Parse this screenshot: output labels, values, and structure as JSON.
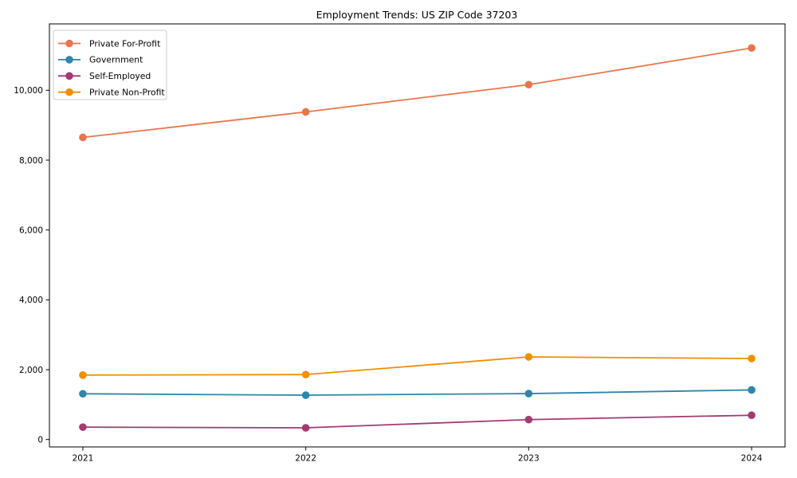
{
  "chart_data": {
    "type": "line",
    "title": "Employment Trends: US ZIP Code 37203",
    "x": [
      "2021",
      "2022",
      "2023",
      "2024"
    ],
    "series": [
      {
        "name": "Private For-Profit",
        "color": "#E8764B",
        "values": [
          8650,
          9380,
          10160,
          11210
        ]
      },
      {
        "name": "Government",
        "color": "#2E86AB",
        "values": [
          1310,
          1270,
          1315,
          1420
        ]
      },
      {
        "name": "Self-Employed",
        "color": "#A23B72",
        "values": [
          355,
          335,
          570,
          695
        ]
      },
      {
        "name": "Private Non-Profit",
        "color": "#F18F01",
        "values": [
          1845,
          1860,
          2365,
          2320
        ]
      }
    ],
    "xlabel": "",
    "ylabel": "",
    "ylim": [
      -212,
      11900
    ],
    "yticks": [
      0,
      2000,
      4000,
      6000,
      8000,
      10000
    ],
    "ytick_labels": [
      "0",
      "2,000",
      "4,000",
      "6,000",
      "8,000",
      "10,000"
    ],
    "grid": false,
    "legend_position": "upper left",
    "marker": "circle"
  },
  "colors": {
    "axis": "#000000",
    "background": "#ffffff",
    "legend_border": "#cccccc",
    "text": "#000000"
  }
}
